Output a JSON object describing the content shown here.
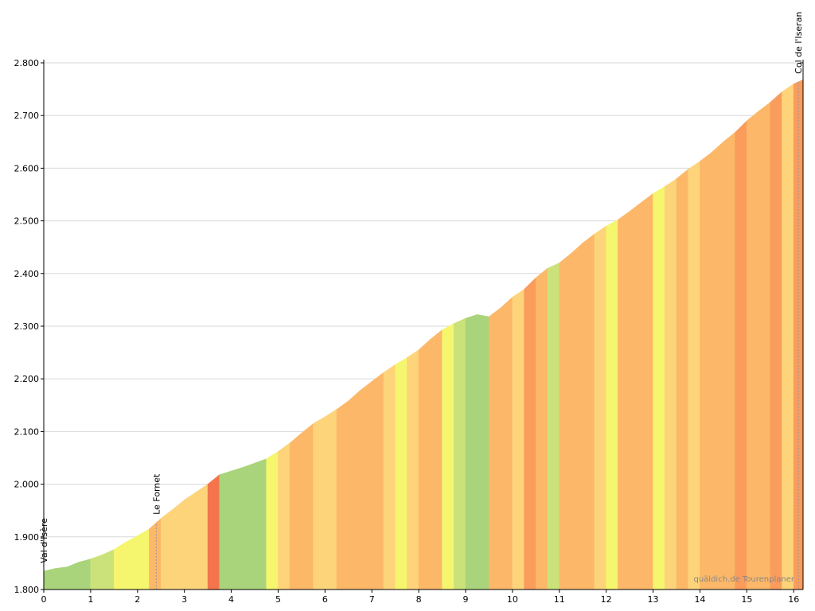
{
  "chart_data": {
    "type": "elevation-profile",
    "watermark": "quäldich.de Tourenplaner",
    "xlim": [
      0,
      16.2
    ],
    "xticks": [
      0,
      1,
      2,
      3,
      4,
      5,
      6,
      7,
      8,
      9,
      10,
      11,
      12,
      13,
      14,
      15,
      16
    ],
    "ylim": [
      1800,
      2800
    ],
    "yticks": [
      {
        "value": 1800,
        "label": "1.800"
      },
      {
        "value": 1900,
        "label": "1.900"
      },
      {
        "value": 2000,
        "label": "2.000"
      },
      {
        "value": 2100,
        "label": "2.100"
      },
      {
        "value": 2200,
        "label": "2.200"
      },
      {
        "value": 2300,
        "label": "2.300"
      },
      {
        "value": 2400,
        "label": "2.400"
      },
      {
        "value": 2500,
        "label": "2.500"
      },
      {
        "value": 2600,
        "label": "2.600"
      },
      {
        "value": 2700,
        "label": "2.700"
      },
      {
        "value": 2800,
        "label": "2.800"
      }
    ],
    "grid": true,
    "x": [
      0,
      0.25,
      0.5,
      0.75,
      1,
      1.25,
      1.5,
      1.75,
      2,
      2.25,
      2.5,
      2.75,
      3,
      3.25,
      3.5,
      3.75,
      4,
      4.25,
      4.5,
      4.75,
      5,
      5.25,
      5.5,
      5.75,
      6,
      6.25,
      6.5,
      6.75,
      7,
      7.25,
      7.5,
      7.75,
      8,
      8.25,
      8.5,
      8.75,
      9,
      9.25,
      9.5,
      9.75,
      10,
      10.25,
      10.5,
      10.75,
      11,
      11.25,
      11.5,
      11.75,
      12,
      12.25,
      12.5,
      12.75,
      13,
      13.25,
      13.5,
      13.75,
      14,
      14.25,
      14.5,
      14.75,
      15,
      15.25,
      15.5,
      15.75,
      16,
      16.2
    ],
    "y": [
      1835,
      1840,
      1843,
      1852,
      1858,
      1866,
      1876,
      1890,
      1902,
      1915,
      1935,
      1952,
      1970,
      1985,
      2000,
      2018,
      2025,
      2032,
      2040,
      2048,
      2062,
      2078,
      2097,
      2115,
      2128,
      2142,
      2158,
      2178,
      2195,
      2212,
      2227,
      2240,
      2255,
      2275,
      2293,
      2305,
      2315,
      2322,
      2318,
      2335,
      2355,
      2370,
      2392,
      2410,
      2420,
      2438,
      2458,
      2475,
      2490,
      2502,
      2518,
      2535,
      2552,
      2565,
      2580,
      2598,
      2613,
      2630,
      2650,
      2668,
      2690,
      2708,
      2725,
      2745,
      2760,
      2768
    ],
    "segment_colors": [
      "#a9d47b",
      "#a9d47b",
      "#a9d47b",
      "#a9d47b",
      "#cbe27a",
      "#cbe27a",
      "#f5f56e",
      "#f5f56e",
      "#f5f56e",
      "#fcb868",
      "#fdd47a",
      "#fdd47a",
      "#fdd47a",
      "#fdd47a",
      "#f4754c",
      "#a9d47b",
      "#a9d47b",
      "#a9d47b",
      "#a9d47b",
      "#f5f56e",
      "#fdd47a",
      "#fcb868",
      "#fcb868",
      "#fdd47a",
      "#fdd47a",
      "#fcb868",
      "#fcb868",
      "#fcb868",
      "#fcb868",
      "#fdd47a",
      "#f5f56e",
      "#fdd47a",
      "#fcb868",
      "#fcb868",
      "#f5f56e",
      "#cbe27a",
      "#a9d47b",
      "#a9d47b",
      "#fcb868",
      "#fcb868",
      "#fdd47a",
      "#fa9c5c",
      "#fcb868",
      "#cbe27a",
      "#fcb868",
      "#fcb868",
      "#fcb868",
      "#fdd47a",
      "#f5f56e",
      "#fcb868",
      "#fcb868",
      "#fcb868",
      "#f5f56e",
      "#fdd47a",
      "#fcb868",
      "#fdd47a",
      "#fcb868",
      "#fcb868",
      "#fcb868",
      "#fa9c5c",
      "#fcb868",
      "#fcb868",
      "#fa9c5c",
      "#fdd47a",
      "#fa9c5c",
      "#f5f56e"
    ],
    "annotations": [
      {
        "x": 0,
        "label": "Val d'Isère"
      },
      {
        "x": 2.4,
        "label": "Le Fornet"
      },
      {
        "x": 16.1,
        "label": "Col de l'Iseran"
      }
    ]
  }
}
